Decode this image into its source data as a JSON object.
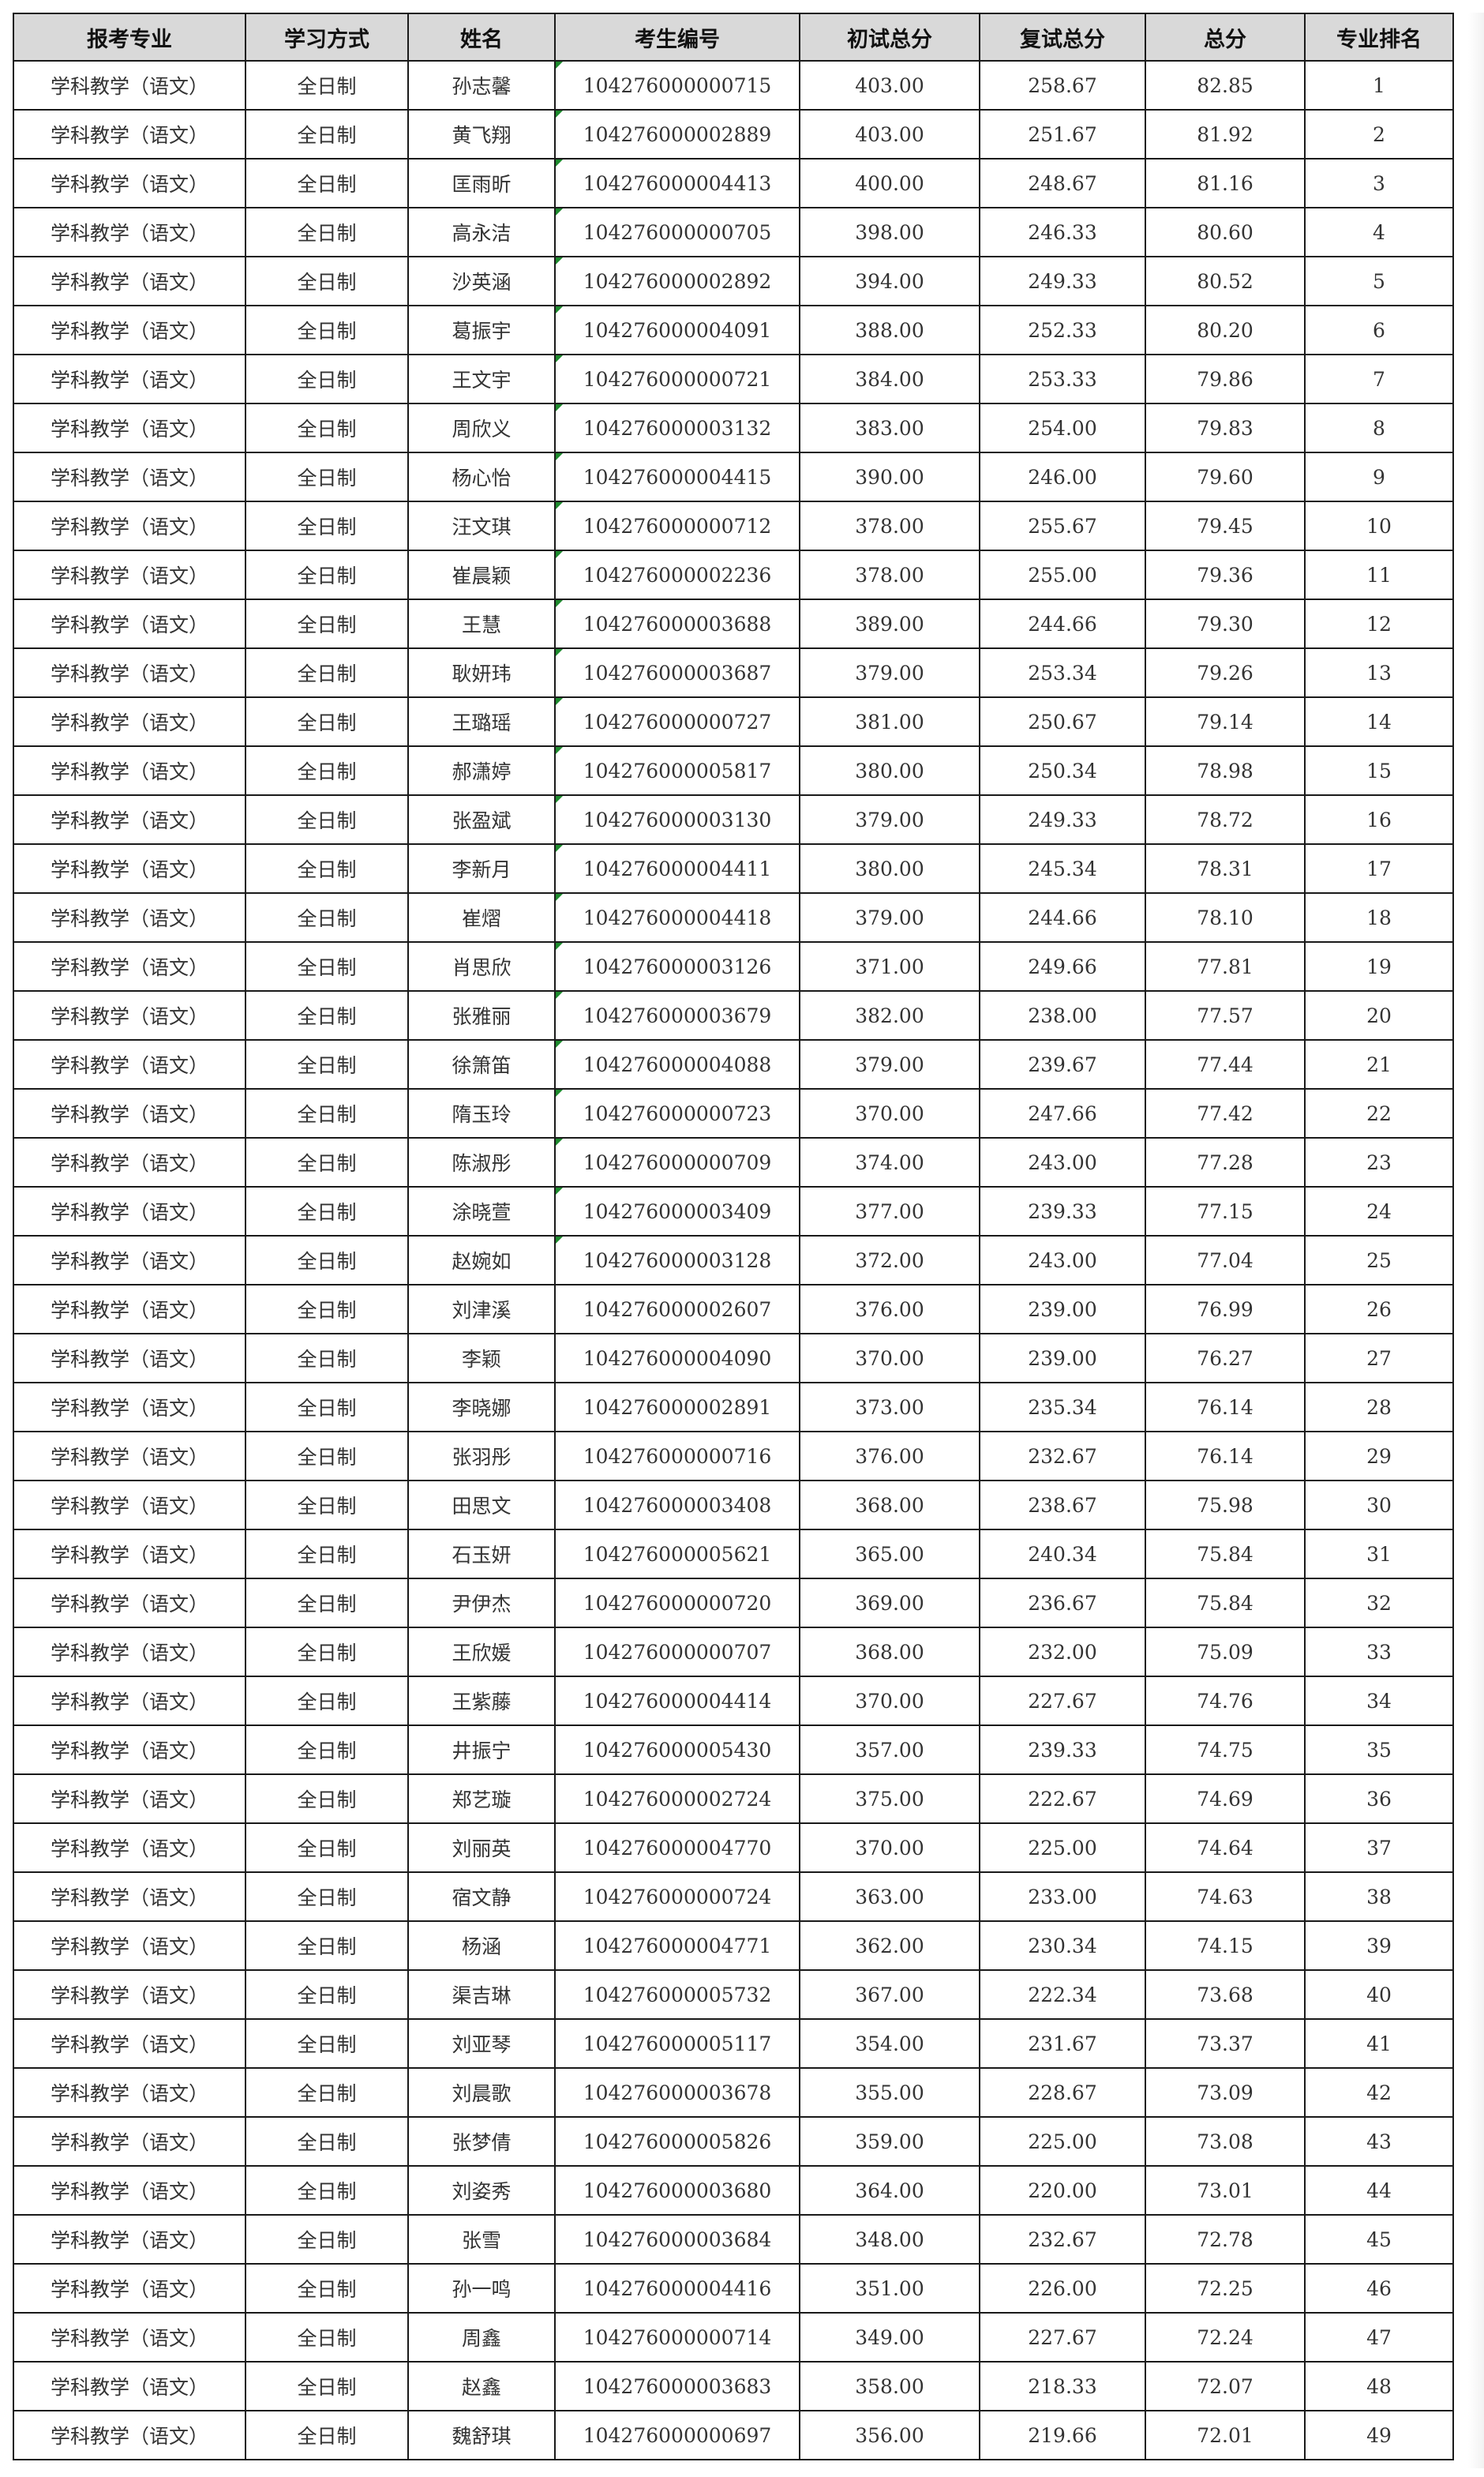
{
  "table": {
    "headers": [
      "报考专业",
      "学习方式",
      "姓名",
      "考生编号",
      "初试总分",
      "复试总分",
      "总分",
      "专业排名"
    ],
    "flag_color": "#1e8a2e",
    "header_bg": "#d9d9d9",
    "rows": [
      [
        "学科教学（语文）",
        "全日制",
        "孙志馨",
        "104276000000715",
        "403.00",
        "258.67",
        "82.85",
        "1"
      ],
      [
        "学科教学（语文）",
        "全日制",
        "黄飞翔",
        "104276000002889",
        "403.00",
        "251.67",
        "81.92",
        "2"
      ],
      [
        "学科教学（语文）",
        "全日制",
        "匡雨昕",
        "104276000004413",
        "400.00",
        "248.67",
        "81.16",
        "3"
      ],
      [
        "学科教学（语文）",
        "全日制",
        "高永洁",
        "104276000000705",
        "398.00",
        "246.33",
        "80.60",
        "4"
      ],
      [
        "学科教学（语文）",
        "全日制",
        "沙英涵",
        "104276000002892",
        "394.00",
        "249.33",
        "80.52",
        "5"
      ],
      [
        "学科教学（语文）",
        "全日制",
        "葛振宇",
        "104276000004091",
        "388.00",
        "252.33",
        "80.20",
        "6"
      ],
      [
        "学科教学（语文）",
        "全日制",
        "王文宇",
        "104276000000721",
        "384.00",
        "253.33",
        "79.86",
        "7"
      ],
      [
        "学科教学（语文）",
        "全日制",
        "周欣义",
        "104276000003132",
        "383.00",
        "254.00",
        "79.83",
        "8"
      ],
      [
        "学科教学（语文）",
        "全日制",
        "杨心怡",
        "104276000004415",
        "390.00",
        "246.00",
        "79.60",
        "9"
      ],
      [
        "学科教学（语文）",
        "全日制",
        "汪文琪",
        "104276000000712",
        "378.00",
        "255.67",
        "79.45",
        "10"
      ],
      [
        "学科教学（语文）",
        "全日制",
        "崔晨颖",
        "104276000002236",
        "378.00",
        "255.00",
        "79.36",
        "11"
      ],
      [
        "学科教学（语文）",
        "全日制",
        "王慧",
        "104276000003688",
        "389.00",
        "244.66",
        "79.30",
        "12"
      ],
      [
        "学科教学（语文）",
        "全日制",
        "耿妍玮",
        "104276000003687",
        "379.00",
        "253.34",
        "79.26",
        "13"
      ],
      [
        "学科教学（语文）",
        "全日制",
        "王璐瑶",
        "104276000000727",
        "381.00",
        "250.67",
        "79.14",
        "14"
      ],
      [
        "学科教学（语文）",
        "全日制",
        "郝潇婷",
        "104276000005817",
        "380.00",
        "250.34",
        "78.98",
        "15"
      ],
      [
        "学科教学（语文）",
        "全日制",
        "张盈斌",
        "104276000003130",
        "379.00",
        "249.33",
        "78.72",
        "16"
      ],
      [
        "学科教学（语文）",
        "全日制",
        "李新月",
        "104276000004411",
        "380.00",
        "245.34",
        "78.31",
        "17"
      ],
      [
        "学科教学（语文）",
        "全日制",
        "崔熠",
        "104276000004418",
        "379.00",
        "244.66",
        "78.10",
        "18"
      ],
      [
        "学科教学（语文）",
        "全日制",
        "肖思欣",
        "104276000003126",
        "371.00",
        "249.66",
        "77.81",
        "19"
      ],
      [
        "学科教学（语文）",
        "全日制",
        "张雅丽",
        "104276000003679",
        "382.00",
        "238.00",
        "77.57",
        "20"
      ],
      [
        "学科教学（语文）",
        "全日制",
        "徐箫笛",
        "104276000004088",
        "379.00",
        "239.67",
        "77.44",
        "21"
      ],
      [
        "学科教学（语文）",
        "全日制",
        "隋玉玲",
        "104276000000723",
        "370.00",
        "247.66",
        "77.42",
        "22"
      ],
      [
        "学科教学（语文）",
        "全日制",
        "陈淑彤",
        "104276000000709",
        "374.00",
        "243.00",
        "77.28",
        "23"
      ],
      [
        "学科教学（语文）",
        "全日制",
        "涂晓萱",
        "104276000003409",
        "377.00",
        "239.33",
        "77.15",
        "24"
      ],
      [
        "学科教学（语文）",
        "全日制",
        "赵婉如",
        "104276000003128",
        "372.00",
        "243.00",
        "77.04",
        "25"
      ],
      [
        "学科教学（语文）",
        "全日制",
        "刘津溪",
        "104276000002607",
        "376.00",
        "239.00",
        "76.99",
        "26"
      ],
      [
        "学科教学（语文）",
        "全日制",
        "李颖",
        "104276000004090",
        "370.00",
        "239.00",
        "76.27",
        "27"
      ],
      [
        "学科教学（语文）",
        "全日制",
        "李晓娜",
        "104276000002891",
        "373.00",
        "235.34",
        "76.14",
        "28"
      ],
      [
        "学科教学（语文）",
        "全日制",
        "张羽彤",
        "104276000000716",
        "376.00",
        "232.67",
        "76.14",
        "29"
      ],
      [
        "学科教学（语文）",
        "全日制",
        "田思文",
        "104276000003408",
        "368.00",
        "238.67",
        "75.98",
        "30"
      ],
      [
        "学科教学（语文）",
        "全日制",
        "石玉妍",
        "104276000005621",
        "365.00",
        "240.34",
        "75.84",
        "31"
      ],
      [
        "学科教学（语文）",
        "全日制",
        "尹伊杰",
        "104276000000720",
        "369.00",
        "236.67",
        "75.84",
        "32"
      ],
      [
        "学科教学（语文）",
        "全日制",
        "王欣媛",
        "104276000000707",
        "368.00",
        "232.00",
        "75.09",
        "33"
      ],
      [
        "学科教学（语文）",
        "全日制",
        "王紫藤",
        "104276000004414",
        "370.00",
        "227.67",
        "74.76",
        "34"
      ],
      [
        "学科教学（语文）",
        "全日制",
        "井振宁",
        "104276000005430",
        "357.00",
        "239.33",
        "74.75",
        "35"
      ],
      [
        "学科教学（语文）",
        "全日制",
        "郑艺璇",
        "104276000002724",
        "375.00",
        "222.67",
        "74.69",
        "36"
      ],
      [
        "学科教学（语文）",
        "全日制",
        "刘丽英",
        "104276000004770",
        "370.00",
        "225.00",
        "74.64",
        "37"
      ],
      [
        "学科教学（语文）",
        "全日制",
        "宿文静",
        "104276000000724",
        "363.00",
        "233.00",
        "74.63",
        "38"
      ],
      [
        "学科教学（语文）",
        "全日制",
        "杨涵",
        "104276000004771",
        "362.00",
        "230.34",
        "74.15",
        "39"
      ],
      [
        "学科教学（语文）",
        "全日制",
        "渠吉琳",
        "104276000005732",
        "367.00",
        "222.34",
        "73.68",
        "40"
      ],
      [
        "学科教学（语文）",
        "全日制",
        "刘亚琴",
        "104276000005117",
        "354.00",
        "231.67",
        "73.37",
        "41"
      ],
      [
        "学科教学（语文）",
        "全日制",
        "刘晨歌",
        "104276000003678",
        "355.00",
        "228.67",
        "73.09",
        "42"
      ],
      [
        "学科教学（语文）",
        "全日制",
        "张梦倩",
        "104276000005826",
        "359.00",
        "225.00",
        "73.08",
        "43"
      ],
      [
        "学科教学（语文）",
        "全日制",
        "刘姿秀",
        "104276000003680",
        "364.00",
        "220.00",
        "73.01",
        "44"
      ],
      [
        "学科教学（语文）",
        "全日制",
        "张雪",
        "104276000003684",
        "348.00",
        "232.67",
        "72.78",
        "45"
      ],
      [
        "学科教学（语文）",
        "全日制",
        "孙一鸣",
        "104276000004416",
        "351.00",
        "226.00",
        "72.25",
        "46"
      ],
      [
        "学科教学（语文）",
        "全日制",
        "周鑫",
        "104276000000714",
        "349.00",
        "227.67",
        "72.24",
        "47"
      ],
      [
        "学科教学（语文）",
        "全日制",
        "赵鑫",
        "104276000003683",
        "358.00",
        "218.33",
        "72.07",
        "48"
      ],
      [
        "学科教学（语文）",
        "全日制",
        "魏舒琪",
        "104276000000697",
        "356.00",
        "219.66",
        "72.01",
        "49"
      ]
    ]
  }
}
